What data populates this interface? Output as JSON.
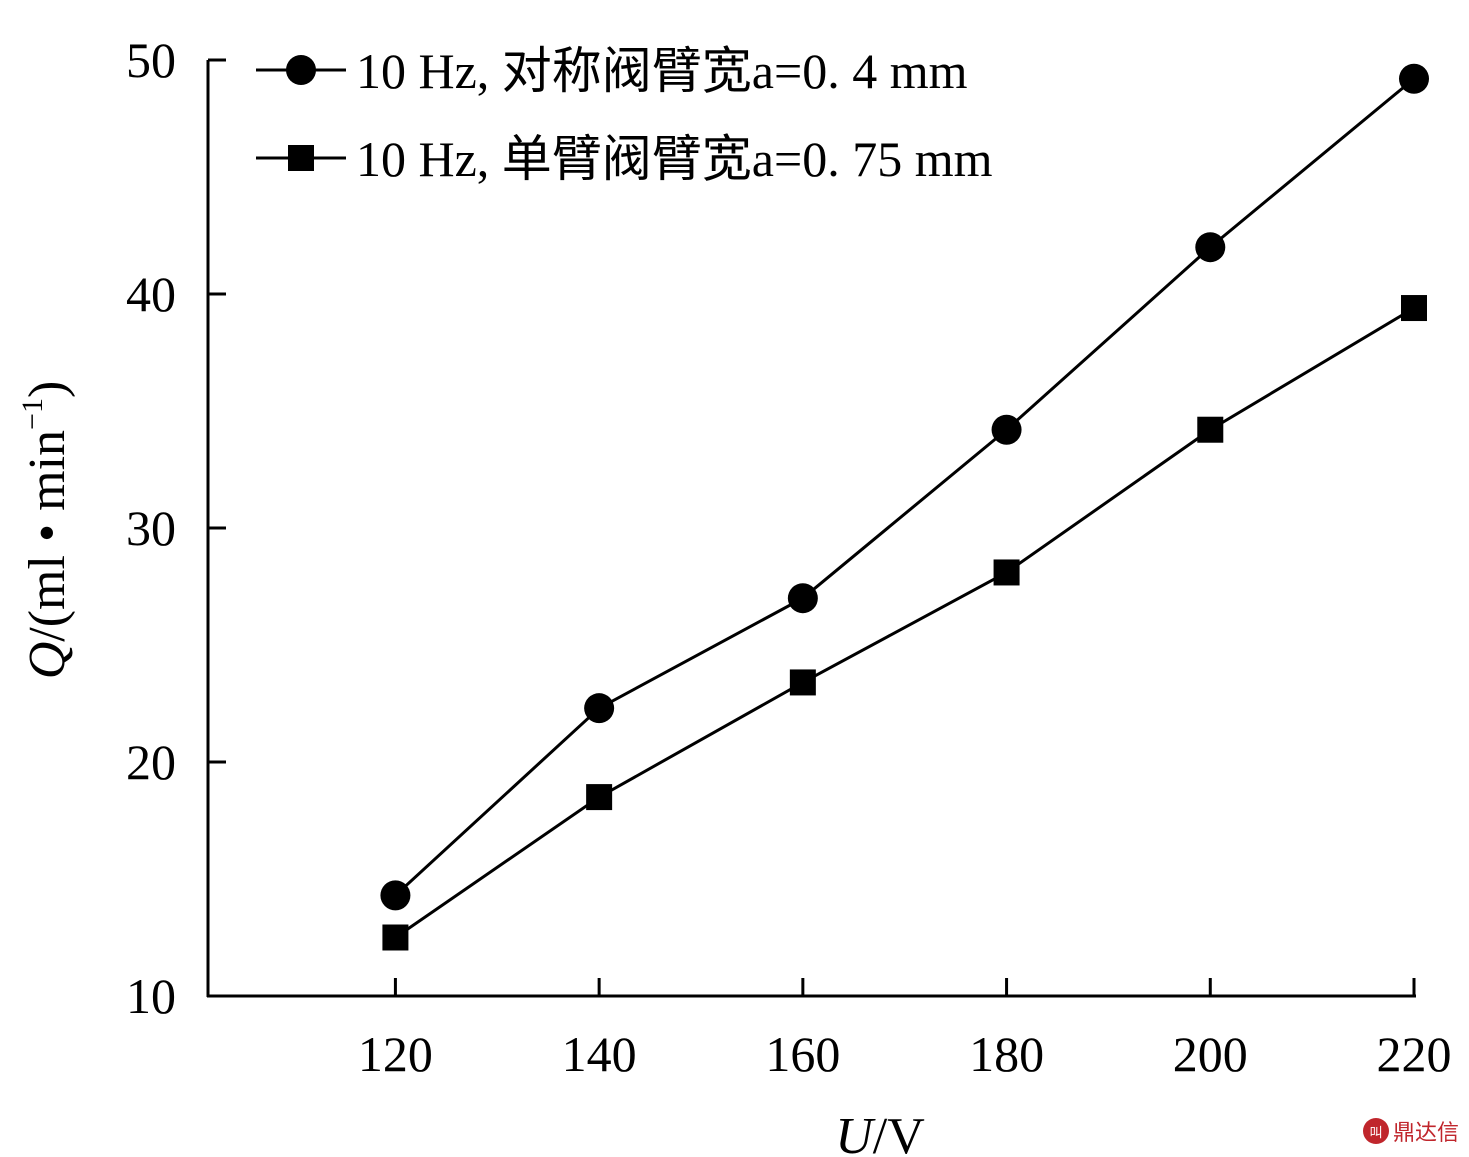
{
  "chart_data": {
    "type": "line",
    "x": [
      120,
      140,
      160,
      180,
      200,
      220
    ],
    "series": [
      {
        "name": "10 Hz, 对称阀臂宽a=0. 4 mm",
        "marker": "circle",
        "values": [
          14.3,
          22.3,
          27.0,
          34.2,
          42.0,
          49.2
        ]
      },
      {
        "name": "10 Hz, 单臂阀臂宽a=0. 75 mm",
        "marker": "square",
        "values": [
          12.5,
          18.5,
          23.4,
          28.1,
          34.2,
          39.4
        ]
      }
    ],
    "xlabel": {
      "symbol": "U",
      "unit": "/V"
    },
    "ylabel": {
      "symbol": "Q",
      "unit": "/(ml • min",
      "sup": "−1",
      "close": ")"
    },
    "xticks": [
      120,
      140,
      160,
      180,
      200,
      220
    ],
    "yticks": [
      10,
      20,
      30,
      40,
      50
    ],
    "xlim": [
      101.6,
      220
    ],
    "ylim": [
      10,
      50
    ],
    "legend_position": "top-left",
    "grid": false,
    "line_color": "#000000"
  },
  "watermark": {
    "logo": "叫",
    "text": "鼎达信"
  }
}
